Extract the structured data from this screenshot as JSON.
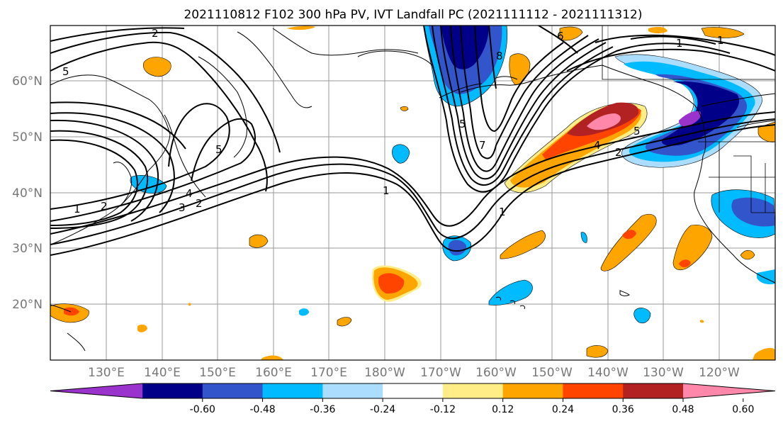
{
  "title": "2021110812 F102 300 hPa PV, IVT Landfall PC (2021111112 - 2021111312)",
  "lat_labels": [
    "60°N",
    "50°N",
    "40°N",
    "30°N",
    "20°N"
  ],
  "lon_labels": [
    "130°E",
    "140°E",
    "150°E",
    "160°E",
    "170°E",
    "180°W",
    "170°W",
    "160°W",
    "150°W",
    "140°W",
    "130°W",
    "120°W"
  ],
  "colorbar": {
    "colors": [
      "#9933cc",
      "#000088",
      "#3355cc",
      "#00bbff",
      "#aaddff",
      "#ffffff",
      "#ffee88",
      "#ffa500",
      "#ff4400",
      "#b22222",
      "#ff88aa"
    ],
    "tick_labels": [
      "-0.60",
      "-0.48",
      "-0.36",
      "-0.24",
      "-0.12",
      "0.12",
      "0.24",
      "0.36",
      "0.48",
      "0.60"
    ]
  },
  "contour_labels": [
    "2",
    "5",
    "5",
    "4",
    "3",
    "2",
    "1",
    "2",
    "1",
    "1",
    "5",
    "7",
    "8",
    "6",
    "1",
    "4",
    "5",
    "2",
    "1"
  ],
  "colors": {
    "orange": "#ffa500",
    "red_orange": "#ff4400",
    "dark_red": "#b22222",
    "pink": "#ff88aa",
    "yellow": "#ffee88",
    "light_blue": "#00bbff",
    "pale_blue": "#aaddff",
    "royal_blue": "#3355cc",
    "navy": "#000088",
    "purple": "#9933cc"
  }
}
